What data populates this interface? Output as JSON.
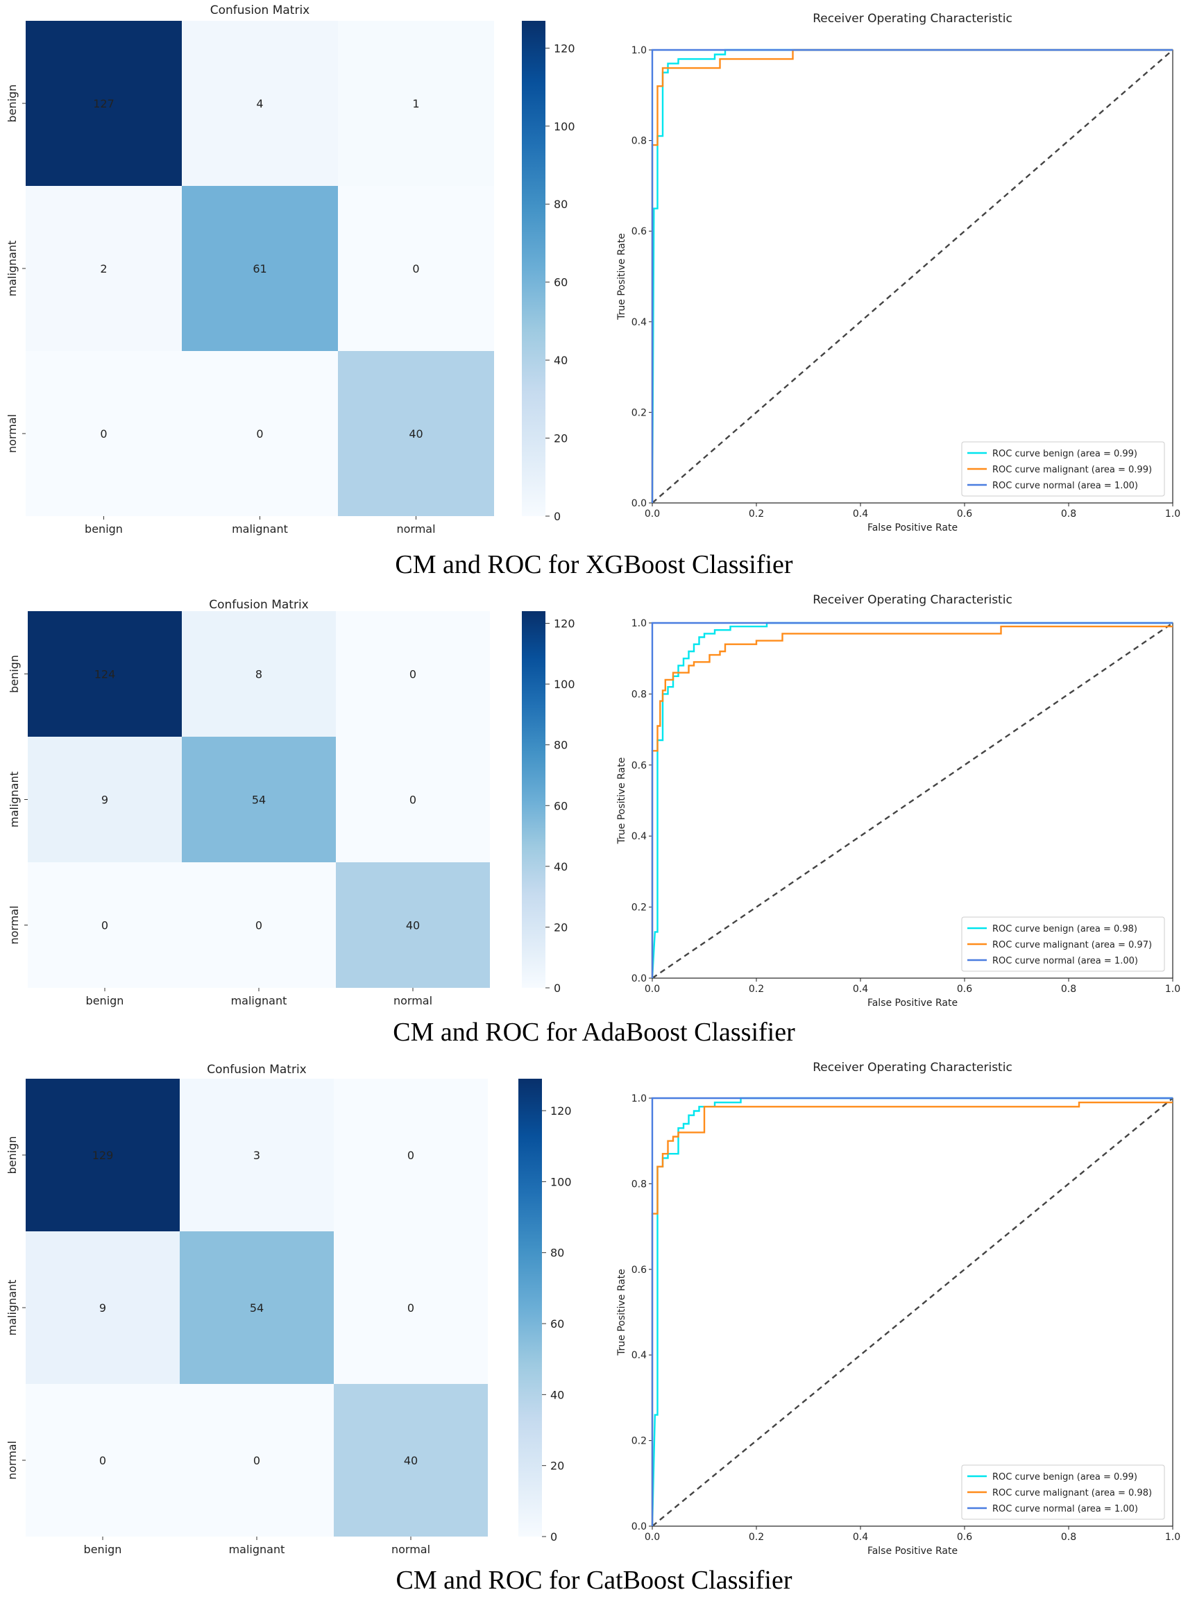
{
  "chart_data": [
    {
      "type": "heatmap",
      "title": "Confusion Matrix",
      "rows": [
        "benign",
        "malignant",
        "normal"
      ],
      "columns": [
        "benign",
        "malignant",
        "normal"
      ],
      "values": [
        [
          127,
          4,
          1
        ],
        [
          2,
          61,
          0
        ],
        [
          0,
          0,
          40
        ]
      ],
      "colorbar_ticks": [
        0,
        20,
        40,
        60,
        80,
        100,
        120
      ],
      "colorbar_max": 127,
      "colormap": "Blues"
    },
    {
      "type": "line",
      "title": "Receiver Operating Characteristic",
      "xlabel": "False Positive Rate",
      "ylabel": "True Positive Rate",
      "xlim": [
        0,
        1
      ],
      "ylim": [
        0,
        1
      ],
      "ticks": [
        "0.0",
        "0.2",
        "0.4",
        "0.6",
        "0.8",
        "1.0"
      ],
      "legend_position": "lower right",
      "series": [
        {
          "name": "ROC curve benign (area = 0.99)",
          "color": "#00e5ee",
          "points": [
            [
              0,
              0
            ],
            [
              0.003,
              0.65
            ],
            [
              0.01,
              0.65
            ],
            [
              0.01,
              0.81
            ],
            [
              0.02,
              0.81
            ],
            [
              0.02,
              0.95
            ],
            [
              0.03,
              0.95
            ],
            [
              0.03,
              0.97
            ],
            [
              0.05,
              0.97
            ],
            [
              0.05,
              0.98
            ],
            [
              0.12,
              0.98
            ],
            [
              0.12,
              0.99
            ],
            [
              0.14,
              0.99
            ],
            [
              0.14,
              1.0
            ],
            [
              1.0,
              1.0
            ]
          ]
        },
        {
          "name": "ROC curve malignant (area = 0.99)",
          "color": "#ff8c1a",
          "points": [
            [
              0,
              0
            ],
            [
              0,
              0.79
            ],
            [
              0.01,
              0.79
            ],
            [
              0.01,
              0.92
            ],
            [
              0.02,
              0.92
            ],
            [
              0.02,
              0.96
            ],
            [
              0.13,
              0.96
            ],
            [
              0.13,
              0.98
            ],
            [
              0.27,
              0.98
            ],
            [
              0.27,
              1.0
            ],
            [
              1.0,
              1.0
            ]
          ]
        },
        {
          "name": "ROC curve normal (area = 1.00)",
          "color": "#4a7de0",
          "points": [
            [
              0,
              0
            ],
            [
              0,
              1.0
            ],
            [
              1.0,
              1.0
            ]
          ]
        }
      ]
    },
    {
      "type": "heatmap",
      "title": "Confusion Matrix",
      "rows": [
        "benign",
        "malignant",
        "normal"
      ],
      "columns": [
        "benign",
        "malignant",
        "normal"
      ],
      "values": [
        [
          124,
          8,
          0
        ],
        [
          9,
          54,
          0
        ],
        [
          0,
          0,
          40
        ]
      ],
      "colorbar_ticks": [
        0,
        20,
        40,
        60,
        80,
        100,
        120
      ],
      "colorbar_max": 124,
      "colormap": "Blues"
    },
    {
      "type": "line",
      "title": "Receiver Operating Characteristic",
      "xlabel": "False Positive Rate",
      "ylabel": "True Positive Rate",
      "xlim": [
        0,
        1
      ],
      "ylim": [
        0,
        1
      ],
      "ticks": [
        "0.0",
        "0.2",
        "0.4",
        "0.6",
        "0.8",
        "1.0"
      ],
      "legend_position": "lower right",
      "series": [
        {
          "name": "ROC curve benign (area = 0.98)",
          "color": "#00e5ee",
          "points": [
            [
              0,
              0
            ],
            [
              0.005,
              0.13
            ],
            [
              0.01,
              0.13
            ],
            [
              0.01,
              0.67
            ],
            [
              0.02,
              0.67
            ],
            [
              0.02,
              0.8
            ],
            [
              0.03,
              0.8
            ],
            [
              0.03,
              0.82
            ],
            [
              0.04,
              0.82
            ],
            [
              0.04,
              0.85
            ],
            [
              0.05,
              0.85
            ],
            [
              0.05,
              0.88
            ],
            [
              0.06,
              0.88
            ],
            [
              0.06,
              0.9
            ],
            [
              0.07,
              0.9
            ],
            [
              0.07,
              0.92
            ],
            [
              0.08,
              0.92
            ],
            [
              0.08,
              0.94
            ],
            [
              0.09,
              0.94
            ],
            [
              0.09,
              0.96
            ],
            [
              0.1,
              0.96
            ],
            [
              0.1,
              0.97
            ],
            [
              0.12,
              0.97
            ],
            [
              0.12,
              0.98
            ],
            [
              0.15,
              0.98
            ],
            [
              0.15,
              0.99
            ],
            [
              0.22,
              0.99
            ],
            [
              0.22,
              1.0
            ],
            [
              1.0,
              1.0
            ]
          ]
        },
        {
          "name": "ROC curve malignant (area = 0.97)",
          "color": "#ff8c1a",
          "points": [
            [
              0,
              0
            ],
            [
              0,
              0.64
            ],
            [
              0.01,
              0.64
            ],
            [
              0.01,
              0.71
            ],
            [
              0.015,
              0.71
            ],
            [
              0.015,
              0.78
            ],
            [
              0.02,
              0.78
            ],
            [
              0.02,
              0.81
            ],
            [
              0.025,
              0.81
            ],
            [
              0.025,
              0.84
            ],
            [
              0.04,
              0.84
            ],
            [
              0.04,
              0.86
            ],
            [
              0.07,
              0.86
            ],
            [
              0.07,
              0.88
            ],
            [
              0.08,
              0.88
            ],
            [
              0.08,
              0.89
            ],
            [
              0.11,
              0.89
            ],
            [
              0.11,
              0.91
            ],
            [
              0.13,
              0.91
            ],
            [
              0.13,
              0.92
            ],
            [
              0.14,
              0.92
            ],
            [
              0.14,
              0.94
            ],
            [
              0.2,
              0.94
            ],
            [
              0.2,
              0.95
            ],
            [
              0.25,
              0.95
            ],
            [
              0.25,
              0.97
            ],
            [
              0.67,
              0.97
            ],
            [
              0.67,
              0.99
            ],
            [
              1.0,
              0.99
            ]
          ]
        },
        {
          "name": "ROC curve normal (area = 1.00)",
          "color": "#4a7de0",
          "points": [
            [
              0,
              0
            ],
            [
              0,
              1.0
            ],
            [
              1.0,
              1.0
            ]
          ]
        }
      ]
    },
    {
      "type": "heatmap",
      "title": "Confusion Matrix",
      "rows": [
        "benign",
        "malignant",
        "normal"
      ],
      "columns": [
        "benign",
        "malignant",
        "normal"
      ],
      "values": [
        [
          129,
          3,
          0
        ],
        [
          9,
          54,
          0
        ],
        [
          0,
          0,
          40
        ]
      ],
      "colorbar_ticks": [
        0,
        20,
        40,
        60,
        80,
        100,
        120
      ],
      "colorbar_max": 129,
      "colormap": "Blues"
    },
    {
      "type": "line",
      "title": "Receiver Operating Characteristic",
      "xlabel": "False Positive Rate",
      "ylabel": "True Positive Rate",
      "xlim": [
        0,
        1
      ],
      "ylim": [
        0,
        1
      ],
      "ticks": [
        "0.0",
        "0.2",
        "0.4",
        "0.6",
        "0.8",
        "1.0"
      ],
      "legend_position": "lower right",
      "series": [
        {
          "name": "ROC curve benign (area = 0.99)",
          "color": "#00e5ee",
          "points": [
            [
              0,
              0
            ],
            [
              0.005,
              0.26
            ],
            [
              0.01,
              0.26
            ],
            [
              0.01,
              0.84
            ],
            [
              0.02,
              0.84
            ],
            [
              0.02,
              0.86
            ],
            [
              0.03,
              0.86
            ],
            [
              0.03,
              0.87
            ],
            [
              0.05,
              0.87
            ],
            [
              0.05,
              0.93
            ],
            [
              0.06,
              0.93
            ],
            [
              0.06,
              0.94
            ],
            [
              0.07,
              0.94
            ],
            [
              0.07,
              0.96
            ],
            [
              0.08,
              0.96
            ],
            [
              0.08,
              0.97
            ],
            [
              0.09,
              0.97
            ],
            [
              0.09,
              0.98
            ],
            [
              0.12,
              0.98
            ],
            [
              0.12,
              0.99
            ],
            [
              0.17,
              0.99
            ],
            [
              0.17,
              1.0
            ],
            [
              1.0,
              1.0
            ]
          ]
        },
        {
          "name": "ROC curve malignant (area = 0.98)",
          "color": "#ff8c1a",
          "points": [
            [
              0,
              0
            ],
            [
              0,
              0.73
            ],
            [
              0.01,
              0.73
            ],
            [
              0.01,
              0.84
            ],
            [
              0.02,
              0.84
            ],
            [
              0.02,
              0.87
            ],
            [
              0.03,
              0.87
            ],
            [
              0.03,
              0.9
            ],
            [
              0.04,
              0.9
            ],
            [
              0.04,
              0.91
            ],
            [
              0.05,
              0.91
            ],
            [
              0.05,
              0.92
            ],
            [
              0.1,
              0.92
            ],
            [
              0.1,
              0.98
            ],
            [
              0.82,
              0.98
            ],
            [
              0.82,
              0.99
            ],
            [
              1.0,
              0.99
            ]
          ]
        },
        {
          "name": "ROC curve normal (area = 1.00)",
          "color": "#4a7de0",
          "points": [
            [
              0,
              0
            ],
            [
              0,
              1.0
            ],
            [
              1.0,
              1.0
            ]
          ]
        }
      ]
    }
  ],
  "captions": [
    "CM and ROC for XGBoost Classifier",
    "CM and ROC for AdaBoost Classifier",
    "CM and ROC for CatBoost Classifier"
  ]
}
